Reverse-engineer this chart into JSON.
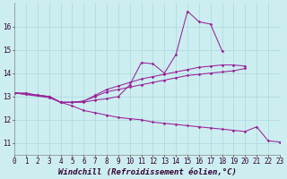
{
  "background_color": "#cceef0",
  "line_color": "#992299",
  "grid_color": "#aad8dc",
  "xlabel": "Windchill (Refroidissement éolien,°C)",
  "xlabel_fontsize": 6.5,
  "tick_fontsize": 5.5,
  "xlim": [
    0,
    23
  ],
  "ylim": [
    10.5,
    17.0
  ],
  "xticks": [
    0,
    1,
    2,
    3,
    4,
    5,
    6,
    7,
    8,
    9,
    10,
    11,
    12,
    13,
    14,
    15,
    16,
    17,
    18,
    19,
    20,
    21,
    22,
    23
  ],
  "yticks": [
    11,
    12,
    13,
    14,
    15,
    16
  ],
  "series1_x": [
    0,
    1,
    2,
    3,
    4,
    5,
    6,
    7,
    8,
    9,
    10,
    11,
    12,
    13,
    14,
    15,
    16,
    17,
    18
  ],
  "series1_y": [
    13.15,
    13.15,
    13.05,
    13.0,
    12.75,
    12.75,
    12.75,
    12.85,
    12.9,
    13.0,
    13.5,
    14.45,
    14.4,
    14.0,
    14.8,
    16.65,
    16.2,
    16.1,
    14.95
  ],
  "series2_x": [
    0,
    1,
    2,
    3,
    4,
    5,
    6,
    7,
    8,
    9,
    10,
    11,
    12,
    13,
    14,
    15,
    16,
    17,
    18,
    19,
    20
  ],
  "series2_y": [
    13.15,
    13.1,
    13.05,
    13.0,
    12.75,
    12.75,
    12.8,
    13.05,
    13.3,
    13.45,
    13.6,
    13.75,
    13.85,
    13.95,
    14.05,
    14.15,
    14.25,
    14.3,
    14.35,
    14.35,
    14.3
  ],
  "series3_x": [
    0,
    1,
    2,
    3,
    4,
    5,
    6,
    7,
    8,
    9,
    10,
    11,
    12,
    13,
    14,
    15,
    16,
    17,
    18,
    19,
    20
  ],
  "series3_y": [
    13.15,
    13.1,
    13.05,
    13.0,
    12.75,
    12.75,
    12.8,
    13.0,
    13.2,
    13.3,
    13.4,
    13.5,
    13.6,
    13.7,
    13.8,
    13.9,
    13.95,
    14.0,
    14.05,
    14.1,
    14.2
  ],
  "series4_x": [
    0,
    3,
    4,
    5,
    6,
    7,
    8,
    9,
    10,
    11,
    12,
    13,
    14,
    15,
    16,
    17,
    18,
    19,
    20,
    21,
    22,
    23
  ],
  "series4_y": [
    13.15,
    12.95,
    12.75,
    12.6,
    12.4,
    12.3,
    12.2,
    12.1,
    12.05,
    12.0,
    11.9,
    11.85,
    11.8,
    11.75,
    11.7,
    11.65,
    11.6,
    11.55,
    11.5,
    11.7,
    11.1,
    11.05
  ]
}
